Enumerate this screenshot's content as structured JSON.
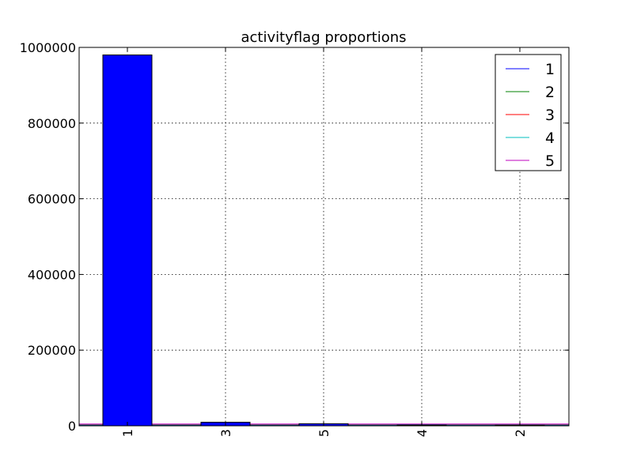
{
  "chart_data": {
    "type": "bar",
    "title": "activityflag proportions",
    "xlabel": "",
    "ylabel": "",
    "categories": [
      "1",
      "3",
      "5",
      "4",
      "2"
    ],
    "values": [
      980000,
      9500,
      5500,
      2000,
      1500
    ],
    "ylim": [
      0,
      1000000
    ],
    "yticks": [
      "0",
      "200000",
      "400000",
      "600000",
      "800000",
      "1000000"
    ],
    "ytick_values": [
      0,
      200000,
      400000,
      600000,
      800000,
      1000000
    ],
    "grid": true,
    "bar_color": "#0000ff",
    "legend": {
      "placement": "top-right",
      "entries": [
        {
          "label": "1",
          "color": "#0000ff"
        },
        {
          "label": "2",
          "color": "#008000"
        },
        {
          "label": "3",
          "color": "#ff0000"
        },
        {
          "label": "4",
          "color": "#00bfbf"
        },
        {
          "label": "5",
          "color": "#bf00bf"
        }
      ]
    },
    "flat_lines": [
      {
        "label": "1",
        "color": "#0000ff"
      },
      {
        "label": "2",
        "color": "#008000"
      },
      {
        "label": "3",
        "color": "#ff0000"
      },
      {
        "label": "4",
        "color": "#00bfbf"
      },
      {
        "label": "5",
        "color": "#bf00bf"
      }
    ]
  }
}
